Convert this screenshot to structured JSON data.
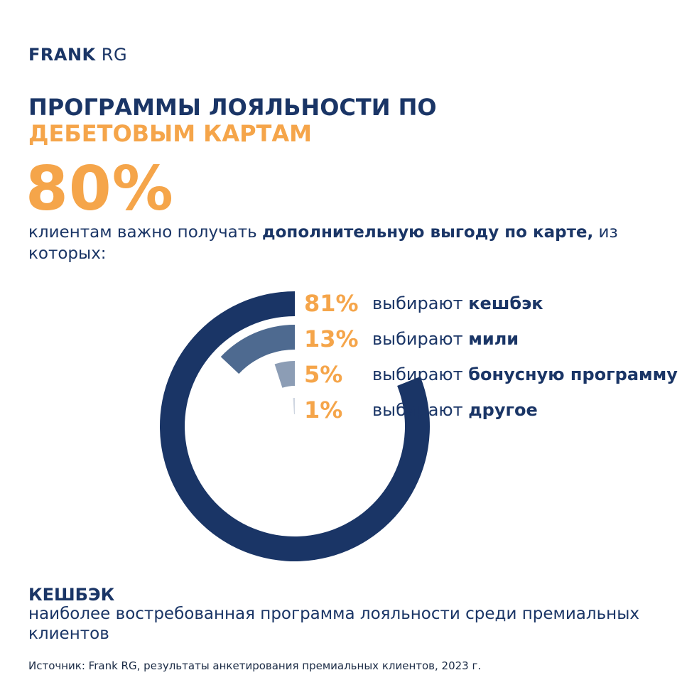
{
  "logo": {
    "bold": "FRANK",
    "regular": "RG"
  },
  "title": {
    "part1": "ПРОГРАММЫ ЛОЯЛЬНОСТИ ПО ",
    "accent": "ДЕБЕТОВЫМ КАРТАМ"
  },
  "headline_value": "80%",
  "subtitle": {
    "part1": "клиентам важно получать ",
    "bold": "дополнительную выгоду по карте,",
    "part2": " из которых:"
  },
  "chart_data": {
    "type": "pie",
    "variant": "radial-bar",
    "categories": [
      "кешбэк",
      "мили",
      "бонусную программу",
      "другое"
    ],
    "values": [
      81,
      13,
      5,
      1
    ],
    "labels": [
      "81%",
      "13%",
      "5%",
      "1%"
    ],
    "prefix": "выбирают",
    "colors": [
      "#1a3566",
      "#4e6a90",
      "#8c9db5",
      "#cfd6e1"
    ]
  },
  "footer": {
    "title": "КЕШБЭК",
    "text": "наиболее востребованная программа лояльности среди премиальных клиентов"
  },
  "source": "Источник: Frank RG, результаты анкетирования премиальных клиентов, 2023 г.",
  "colors": {
    "navy": "#1a3566",
    "orange": "#f5a54a"
  }
}
